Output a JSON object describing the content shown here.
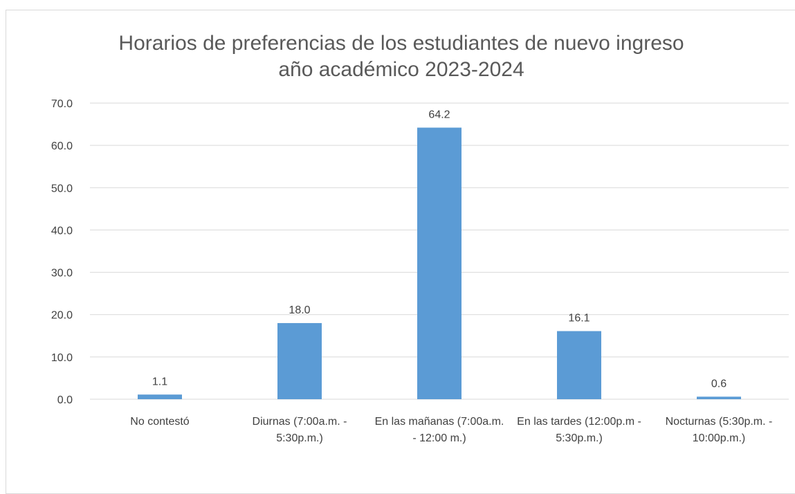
{
  "chart_data": {
    "type": "bar",
    "title": "Horarios de preferencias de los estudiantes de nuevo ingreso año académico 2023-2024",
    "categories": [
      "No contestó",
      "Diurnas (7:00a.m. - 5:30p.m.)",
      "En las mañanas (7:00a.m. - 12:00 m.)",
      "En las tardes (12:00p.m - 5:30p.m.)",
      "Nocturnas (5:30p.m. - 10:00p.m.)"
    ],
    "values": [
      1.1,
      18.0,
      64.2,
      16.1,
      0.6
    ],
    "value_labels": [
      "1.1",
      "18.0",
      "64.2",
      "16.1",
      "0.6"
    ],
    "color": "#5b9bd5",
    "ylim": [
      0,
      70
    ],
    "yticks": [
      {
        "value": 0,
        "label": "0.0"
      },
      {
        "value": 10,
        "label": "10.0"
      },
      {
        "value": 20,
        "label": "20.0"
      },
      {
        "value": 30,
        "label": "30.0"
      },
      {
        "value": 40,
        "label": "40.0"
      },
      {
        "value": 50,
        "label": "50.0"
      },
      {
        "value": 60,
        "label": "60.0"
      },
      {
        "value": 70,
        "label": "70.0"
      }
    ],
    "grid": true
  }
}
